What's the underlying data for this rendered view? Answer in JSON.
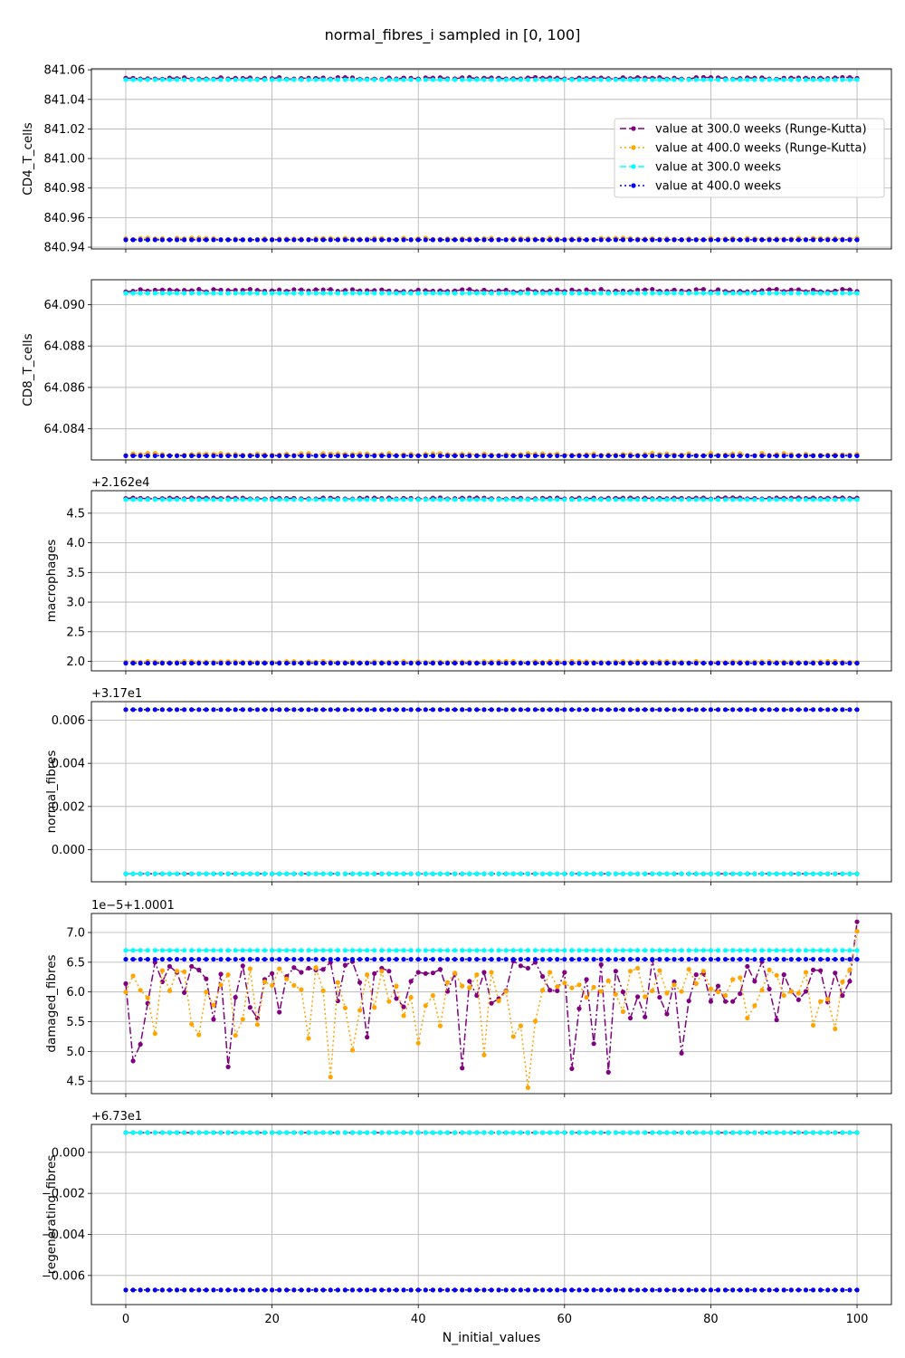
{
  "chart_data": {
    "type": "line",
    "title": "normal_fibres_i sampled in [0, 100]",
    "xlabel": "N_initial_values",
    "x_ticks": [
      0,
      20,
      40,
      60,
      80,
      100
    ],
    "xlim": [
      -4.7,
      104.7
    ],
    "grid": true,
    "legend": {
      "placement": "right",
      "entries": [
        {
          "label": "value at 300.0 weeks (Runge-Kutta)",
          "color": "#800080",
          "linestyle": "dashed",
          "marker": "circle"
        },
        {
          "label": "value at 400.0 weeks (Runge-Kutta)",
          "color": "#FFA500",
          "linestyle": "dotted",
          "marker": "circle"
        },
        {
          "label": "value at 300.0 weeks",
          "color": "#00FFFF",
          "linestyle": "dashed",
          "marker": "circle"
        },
        {
          "label": "value at 400.0 weeks",
          "color": "#0000FF",
          "linestyle": "dotted",
          "marker": "circle"
        }
      ]
    },
    "x": {
      "start": 0,
      "end": 100,
      "step": 1
    },
    "subplots": [
      {
        "ylabel": "CD4_T_cells",
        "offset_text": "",
        "ylim": [
          840.9388,
          841.0607
        ],
        "yticks": [
          840.94,
          840.96,
          840.98,
          841.0,
          841.02,
          841.04,
          841.06
        ],
        "ytick_labels": [
          "840.94",
          "840.96",
          "840.98",
          "841.00",
          "841.02",
          "841.04",
          "841.06"
        ],
        "series": [
          {
            "name": "value at 300.0 weeks (Runge-Kutta)",
            "color": "#800080",
            "style": "dashdot",
            "base": 841.0537,
            "noise": 0.0012
          },
          {
            "name": "value at 400.0 weeks (Runge-Kutta)",
            "color": "#FFA500",
            "style": "dotted",
            "base": 840.9452,
            "noise": 0.001
          },
          {
            "name": "value at 300.0 weeks",
            "color": "#00FFFF",
            "style": "dashed",
            "base": 841.0533,
            "noise": 0
          },
          {
            "name": "value at 400.0 weeks",
            "color": "#0000FF",
            "style": "dotted",
            "base": 840.945,
            "noise": 0
          }
        ]
      },
      {
        "ylabel": "CD8_T_cells",
        "offset_text": "",
        "ylim": [
          64.0825,
          64.0912
        ],
        "yticks": [
          64.084,
          64.086,
          64.088,
          64.09
        ],
        "ytick_labels": [
          "64.084",
          "64.086",
          "64.088",
          "64.090"
        ],
        "series": [
          {
            "name": "value at 300.0 weeks (Runge-Kutta)",
            "color": "#800080",
            "style": "dashdot",
            "base": 64.09062,
            "noise": 0.00012
          },
          {
            "name": "value at 400.0 weeks (Runge-Kutta)",
            "color": "#FFA500",
            "style": "dotted",
            "base": 64.08272,
            "noise": 0.0001
          },
          {
            "name": "value at 300.0 weeks",
            "color": "#00FFFF",
            "style": "dashed",
            "base": 64.09055,
            "noise": 0
          },
          {
            "name": "value at 400.0 weeks",
            "color": "#0000FF",
            "style": "dotted",
            "base": 64.0827,
            "noise": 0
          }
        ]
      },
      {
        "ylabel": "macrophages",
        "offset_text": "+2.162e4",
        "ylim": [
          1.84,
          4.88
        ],
        "yticks": [
          2.0,
          2.5,
          3.0,
          3.5,
          4.0,
          4.5
        ],
        "ytick_labels": [
          "2.0",
          "2.5",
          "3.0",
          "3.5",
          "4.0",
          "4.5"
        ],
        "series": [
          {
            "name": "value at 300.0 weeks (Runge-Kutta)",
            "color": "#800080",
            "style": "dashdot",
            "base": 4.74,
            "noise": 0.02
          },
          {
            "name": "value at 400.0 weeks (Runge-Kutta)",
            "color": "#FFA500",
            "style": "dotted",
            "base": 1.98,
            "noise": 0.02
          },
          {
            "name": "value at 300.0 weeks",
            "color": "#00FFFF",
            "style": "dashed",
            "base": 4.73,
            "noise": 0
          },
          {
            "name": "value at 400.0 weeks",
            "color": "#0000FF",
            "style": "dotted",
            "base": 1.97,
            "noise": 0
          }
        ]
      },
      {
        "ylabel": "normal_fibres",
        "offset_text": "+3.17e1",
        "ylim": [
          -0.00149,
          0.00686
        ],
        "yticks": [
          0.0,
          0.002,
          0.004,
          0.006
        ],
        "ytick_labels": [
          "0.000",
          "0.002",
          "0.004",
          "0.006"
        ],
        "series": [
          {
            "name": "value at 300.0 weeks (Runge-Kutta)",
            "color": "#800080",
            "style": "dashdot",
            "base": -0.00112,
            "noise": 0
          },
          {
            "name": "value at 400.0 weeks (Runge-Kutta)",
            "color": "#FFA500",
            "style": "dotted",
            "base": 0.00649,
            "noise": 0
          },
          {
            "name": "value at 300.0 weeks",
            "color": "#00FFFF",
            "style": "dashed",
            "base": -0.00112,
            "noise": 0
          },
          {
            "name": "value at 400.0 weeks",
            "color": "#0000FF",
            "style": "dotted",
            "base": 0.00649,
            "noise": 0
          }
        ]
      },
      {
        "ylabel": "damaged_fibres",
        "offset_text": "1e−5+1.0001",
        "ylim": [
          4.29,
          7.32
        ],
        "yticks": [
          4.5,
          5.0,
          5.5,
          6.0,
          6.5,
          7.0
        ],
        "ytick_labels": [
          "4.5",
          "5.0",
          "5.5",
          "6.0",
          "6.5",
          "7.0"
        ],
        "series": [
          {
            "name": "value at 300.0 weeks (Runge-Kutta)",
            "color": "#800080",
            "style": "dashdot",
            "values": [
              6.14,
              4.84,
              5.12,
              5.81,
              6.5,
              6.17,
              6.43,
              6.33,
              5.99,
              6.43,
              6.37,
              6.22,
              5.54,
              6.3,
              4.74,
              5.91,
              6.44,
              5.74,
              5.56,
              6.21,
              6.31,
              5.66,
              6.26,
              6.41,
              6.33,
              6.4,
              6.37,
              6.38,
              6.5,
              5.85,
              6.45,
              6.51,
              6.16,
              5.24,
              6.31,
              6.4,
              6.35,
              5.89,
              5.75,
              6.18,
              6.33,
              6.31,
              6.32,
              6.38,
              6.01,
              6.31,
              4.72,
              6.18,
              5.94,
              6.33,
              5.81,
              5.89,
              6.02,
              6.52,
              6.44,
              6.4,
              6.5,
              6.26,
              6.03,
              6.02,
              6.33,
              4.71,
              5.72,
              6.21,
              5.13,
              6.46,
              4.65,
              6.35,
              6.0,
              5.56,
              5.92,
              5.58,
              6.54,
              5.91,
              5.63,
              6.17,
              4.97,
              5.85,
              6.29,
              6.31,
              5.84,
              6.1,
              5.84,
              5.84,
              5.97,
              6.43,
              6.18,
              6.51,
              6.05,
              5.53,
              6.29,
              6.01,
              5.87,
              6.01,
              6.37,
              6.36,
              5.83,
              6.32,
              5.94,
              6.18,
              7.18
            ]
          },
          {
            "name": "value at 400.0 weeks (Runge-Kutta)",
            "color": "#FFA500",
            "style": "dotted",
            "values": [
              6.0,
              6.27,
              6.03,
              5.9,
              5.3,
              6.36,
              6.02,
              6.35,
              6.34,
              5.46,
              5.28,
              6.0,
              5.78,
              6.12,
              6.29,
              5.27,
              5.54,
              6.39,
              5.45,
              6.17,
              6.11,
              6.39,
              6.22,
              6.11,
              6.04,
              5.22,
              6.41,
              6.02,
              4.57,
              6.16,
              5.73,
              5.02,
              5.69,
              6.29,
              5.74,
              6.35,
              5.84,
              6.1,
              5.6,
              5.91,
              5.14,
              5.77,
              5.94,
              5.43,
              6.16,
              6.32,
              6.1,
              6.07,
              6.29,
              4.94,
              6.33,
              5.85,
              6.01,
              5.25,
              5.43,
              4.39,
              5.51,
              6.03,
              6.33,
              6.09,
              6.15,
              6.07,
              6.12,
              5.91,
              6.08,
              6.01,
              6.19,
              5.96,
              5.67,
              6.35,
              6.4,
              5.92,
              6.02,
              6.36,
              5.98,
              6.12,
              6.01,
              6.38,
              6.14,
              6.35,
              6.05,
              6.0,
              5.94,
              6.21,
              6.24,
              5.56,
              5.77,
              6.03,
              6.37,
              6.28,
              5.94,
              6.01,
              5.98,
              6.33,
              5.44,
              5.84,
              5.88,
              5.38,
              6.17,
              6.37,
              7.02
            ]
          },
          {
            "name": "value at 300.0 weeks",
            "color": "#00FFFF",
            "style": "dashed",
            "base": 6.7,
            "noise": 0
          },
          {
            "name": "value at 400.0 weeks",
            "color": "#0000FF",
            "style": "dotted",
            "base": 6.55,
            "noise": 0
          }
        ]
      },
      {
        "ylabel": "regenerating_fibres",
        "offset_text": "+6.73e1",
        "ylim": [
          -0.00742,
          0.00136
        ],
        "yticks": [
          -0.006,
          -0.004,
          -0.002,
          0.0
        ],
        "ytick_labels": [
          "−0.006",
          "−0.004",
          "−0.002",
          "0.000"
        ],
        "series": [
          {
            "name": "value at 300.0 weeks (Runge-Kutta)",
            "color": "#800080",
            "style": "dashdot",
            "base": 0.00096,
            "noise": 0
          },
          {
            "name": "value at 400.0 weeks (Runge-Kutta)",
            "color": "#FFA500",
            "style": "dotted",
            "base": -0.00671,
            "noise": 0
          },
          {
            "name": "value at 300.0 weeks",
            "color": "#00FFFF",
            "style": "dashed",
            "base": 0.00096,
            "noise": 0
          },
          {
            "name": "value at 400.0 weeks",
            "color": "#0000FF",
            "style": "dotted",
            "base": -0.00671,
            "noise": 0
          }
        ]
      }
    ]
  }
}
